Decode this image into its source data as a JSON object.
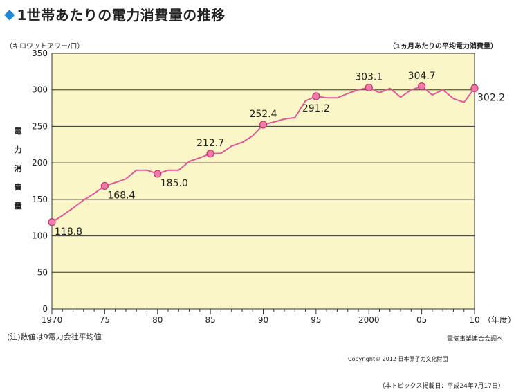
{
  "title": {
    "marker": "◆",
    "text": "1世帯あたりの電力消費量の推移"
  },
  "unit_left": "（キロワットアワー/口）",
  "unit_right": "（1ヵ月あたりの平均電力消費量）",
  "note": "(注)数値は9電力会社平均値",
  "source": "電気事業連合会調べ",
  "copyright": "Copyright© 2012 日本原子力文化財団",
  "posted": "（本トピックス掲載日：平成24年7月17日）",
  "chart_data": {
    "type": "line",
    "ylabel": "電力消費量",
    "xlabel_unit": "（年度）",
    "xlim": [
      1970,
      2010
    ],
    "ylim": [
      0,
      350
    ],
    "yticks": [
      0,
      50,
      100,
      150,
      200,
      250,
      300,
      350
    ],
    "xticks": [
      {
        "value": 1970,
        "label": "1970"
      },
      {
        "value": 1975,
        "label": "75"
      },
      {
        "value": 1980,
        "label": "80"
      },
      {
        "value": 1985,
        "label": "85"
      },
      {
        "value": 1990,
        "label": "90"
      },
      {
        "value": 1995,
        "label": "95"
      },
      {
        "value": 2000,
        "label": "2000"
      },
      {
        "value": 2005,
        "label": "05"
      },
      {
        "value": 2010,
        "label": "10"
      }
    ],
    "grid": true,
    "line_color": "#e05a9a",
    "marker_color": "#f07aa8",
    "background_color": "#faf6c8",
    "series": [
      {
        "x": [
          1970,
          1971,
          1972,
          1973,
          1974,
          1975,
          1976,
          1977,
          1978,
          1979,
          1980,
          1981,
          1982,
          1983,
          1984,
          1985,
          1986,
          1987,
          1988,
          1989,
          1990,
          1991,
          1992,
          1993,
          1994,
          1995,
          1996,
          1997,
          1998,
          1999,
          2000,
          2001,
          2002,
          2003,
          2004,
          2005,
          2006,
          2007,
          2008,
          2009,
          2010
        ],
        "y": [
          118.8,
          128,
          138,
          149,
          158,
          168.4,
          173,
          178,
          190,
          190,
          185.0,
          190,
          190,
          202,
          207,
          212.7,
          213,
          223,
          228,
          237,
          252.4,
          256,
          260,
          262,
          285,
          291.2,
          289,
          289,
          295,
          300,
          303.1,
          296,
          302,
          290,
          300,
          304.7,
          293,
          300,
          288,
          283,
          302.2
        ]
      }
    ],
    "annotations": [
      {
        "x": 1970,
        "y": 118.8,
        "label": "118.8",
        "pos": "below-right"
      },
      {
        "x": 1975,
        "y": 168.4,
        "label": "168.4",
        "pos": "below-right"
      },
      {
        "x": 1980,
        "y": 185.0,
        "label": "185.0",
        "pos": "below-right"
      },
      {
        "x": 1985,
        "y": 212.7,
        "label": "212.7",
        "pos": "above"
      },
      {
        "x": 1990,
        "y": 252.4,
        "label": "252.4",
        "pos": "above"
      },
      {
        "x": 1995,
        "y": 291.2,
        "label": "291.2",
        "pos": "below"
      },
      {
        "x": 2000,
        "y": 303.1,
        "label": "303.1",
        "pos": "above"
      },
      {
        "x": 2005,
        "y": 304.7,
        "label": "304.7",
        "pos": "above"
      },
      {
        "x": 2010,
        "y": 302.2,
        "label": "302.2",
        "pos": "below-right"
      }
    ]
  }
}
